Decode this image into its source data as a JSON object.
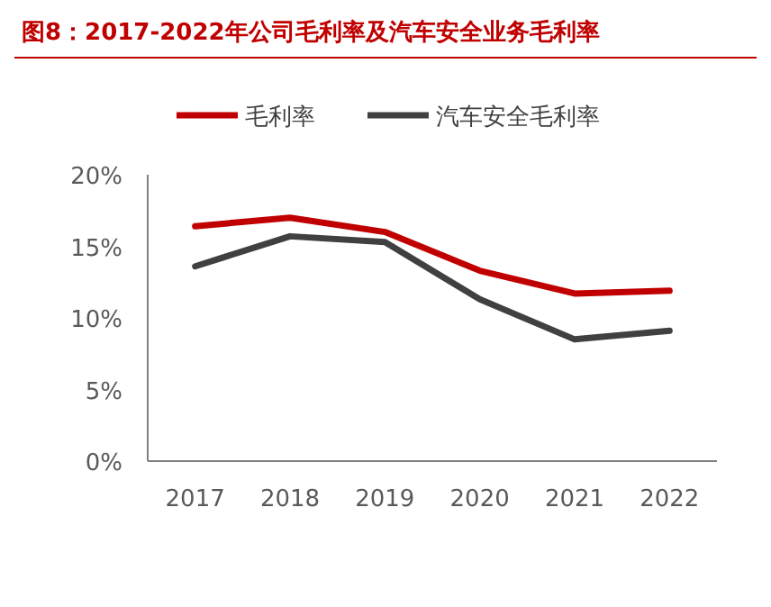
{
  "chart_data": {
    "type": "line",
    "title": "图8：2017-2022年公司毛利率及汽车安全业务毛利率",
    "categories": [
      "2017",
      "2018",
      "2019",
      "2020",
      "2021",
      "2022"
    ],
    "series": [
      {
        "name": "毛利率",
        "color": "#c00000",
        "values": [
          16.4,
          17.0,
          16.0,
          13.3,
          11.7,
          11.9
        ]
      },
      {
        "name": "汽车安全毛利率",
        "color": "#404040",
        "values": [
          13.6,
          15.7,
          15.3,
          11.3,
          8.5,
          9.1
        ]
      }
    ],
    "ylim": [
      0,
      20
    ],
    "yticks": [
      {
        "value": 0,
        "label": "0%"
      },
      {
        "value": 5,
        "label": "5%"
      },
      {
        "value": 10,
        "label": "10%"
      },
      {
        "value": 15,
        "label": "15%"
      },
      {
        "value": 20,
        "label": "20%"
      }
    ],
    "legend": "top",
    "grid": false,
    "marker": "none",
    "line_style": "solid"
  }
}
